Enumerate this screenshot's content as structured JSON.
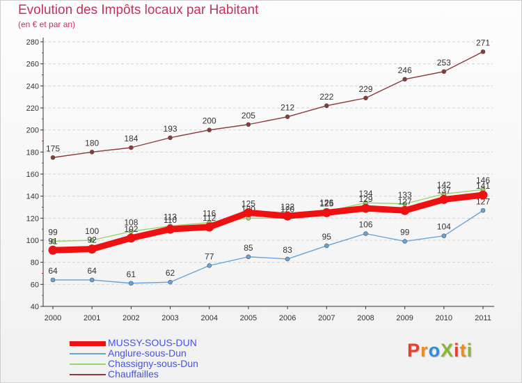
{
  "title": "Evolution des Impôts locaux par Habitant",
  "subtitle": "(en € et par an)",
  "logo": {
    "text": "ProXiti",
    "letters": [
      {
        "ch": "P",
        "color": "#e3402f"
      },
      {
        "ch": "r",
        "color": "#f08a1c"
      },
      {
        "ch": "o",
        "color": "#2f8fd6"
      },
      {
        "ch": "X",
        "color": "#88b833"
      },
      {
        "ch": "i",
        "color": "#e3402f"
      },
      {
        "ch": "t",
        "color": "#f08a1c"
      },
      {
        "ch": "i",
        "color": "#88b833"
      }
    ]
  },
  "chart_data": {
    "type": "line",
    "title": "Evolution des Impôts locaux par Habitant",
    "subtitle": "(en € et par an)",
    "x": [
      2000,
      2001,
      2002,
      2003,
      2004,
      2005,
      2006,
      2007,
      2008,
      2009,
      2010,
      2011
    ],
    "ylim": [
      40,
      280
    ],
    "yticks": [
      40,
      60,
      80,
      100,
      120,
      140,
      160,
      180,
      200,
      220,
      240,
      260,
      280
    ],
    "grid": "horizontal dashed",
    "series": [
      {
        "name": "Chauffailles",
        "color": "#8b3a3a",
        "values": [
          175,
          180,
          184,
          193,
          200,
          205,
          212,
          222,
          229,
          246,
          253,
          271
        ]
      },
      {
        "name": "Anglure-sous-Dun",
        "color": "#6aa3d6",
        "values": [
          64,
          64,
          61,
          62,
          77,
          85,
          83,
          95,
          106,
          99,
          104,
          127
        ]
      },
      {
        "name": "Chassigny-sous-Dun",
        "color": "#99d36b",
        "values": [
          99,
          100,
          108,
          113,
          116,
          120,
          120,
          126,
          134,
          133,
          142,
          146
        ]
      },
      {
        "name": "MUSSY-SOUS-DUN",
        "color": "#ee1111",
        "values": [
          91,
          92,
          102,
          110,
          112,
          125,
          122,
          125,
          129,
          127,
          137,
          141
        ]
      }
    ]
  },
  "legend": [
    {
      "label": "MUSSY-SOUS-DUN",
      "color": "#ee1111"
    },
    {
      "label": "Anglure-sous-Dun",
      "color": "#6aa3d6"
    },
    {
      "label": "Chassigny-sous-Dun",
      "color": "#99d36b"
    },
    {
      "label": "Chauffailles",
      "color": "#8b3a3a"
    }
  ]
}
